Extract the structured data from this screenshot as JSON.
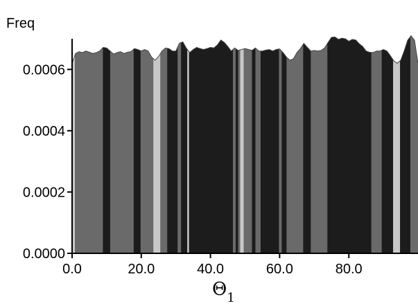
{
  "chart_data": {
    "type": "area",
    "ylabel": "Freq",
    "xlabel": "Θ",
    "xlabel_subscript": "1",
    "xlim": [
      0,
      100
    ],
    "ylim": [
      0,
      0.0007
    ],
    "xticks": [
      "0.0",
      "20.0",
      "40.0",
      "60.0",
      "80.0"
    ],
    "xtick_values": [
      0,
      20,
      40,
      60,
      80
    ],
    "yticks": [
      "0.0000",
      "0.0002",
      "0.0004",
      "0.0006"
    ],
    "ytick_values": [
      0,
      0.0002,
      0.0004,
      0.0006
    ],
    "grid": false,
    "band_colors": {
      "light": "#c8c8c8",
      "medium": "#6a6a6a",
      "dark": "#1c1c1c"
    },
    "bands": [
      {
        "x0": 0.0,
        "x1": 0.8,
        "shade": "light"
      },
      {
        "x0": 0.8,
        "x1": 8.9,
        "shade": "medium"
      },
      {
        "x0": 8.9,
        "x1": 11.0,
        "shade": "dark"
      },
      {
        "x0": 11.0,
        "x1": 17.8,
        "shade": "medium"
      },
      {
        "x0": 17.8,
        "x1": 19.8,
        "shade": "dark"
      },
      {
        "x0": 19.8,
        "x1": 23.5,
        "shade": "medium"
      },
      {
        "x0": 23.5,
        "x1": 25.5,
        "shade": "light"
      },
      {
        "x0": 25.5,
        "x1": 27.5,
        "shade": "medium"
      },
      {
        "x0": 27.5,
        "x1": 30.5,
        "shade": "dark"
      },
      {
        "x0": 30.5,
        "x1": 31.5,
        "shade": "medium"
      },
      {
        "x0": 31.5,
        "x1": 33.3,
        "shade": "dark"
      },
      {
        "x0": 33.3,
        "x1": 33.8,
        "shade": "light"
      },
      {
        "x0": 33.8,
        "x1": 46.5,
        "shade": "dark"
      },
      {
        "x0": 46.5,
        "x1": 47.3,
        "shade": "medium"
      },
      {
        "x0": 47.3,
        "x1": 48.0,
        "shade": "dark"
      },
      {
        "x0": 48.0,
        "x1": 48.6,
        "shade": "medium"
      },
      {
        "x0": 48.6,
        "x1": 49.6,
        "shade": "light"
      },
      {
        "x0": 49.6,
        "x1": 52.0,
        "shade": "medium"
      },
      {
        "x0": 52.0,
        "x1": 53.0,
        "shade": "dark"
      },
      {
        "x0": 53.0,
        "x1": 54.5,
        "shade": "medium"
      },
      {
        "x0": 54.5,
        "x1": 59.8,
        "shade": "dark"
      },
      {
        "x0": 59.8,
        "x1": 60.6,
        "shade": "medium"
      },
      {
        "x0": 60.6,
        "x1": 62.0,
        "shade": "dark"
      },
      {
        "x0": 62.0,
        "x1": 66.8,
        "shade": "medium"
      },
      {
        "x0": 66.8,
        "x1": 69.0,
        "shade": "dark"
      },
      {
        "x0": 69.0,
        "x1": 73.8,
        "shade": "medium"
      },
      {
        "x0": 73.8,
        "x1": 86.5,
        "shade": "dark"
      },
      {
        "x0": 86.5,
        "x1": 89.5,
        "shade": "medium"
      },
      {
        "x0": 89.5,
        "x1": 92.8,
        "shade": "dark"
      },
      {
        "x0": 92.8,
        "x1": 94.8,
        "shade": "light"
      },
      {
        "x0": 94.8,
        "x1": 97.8,
        "shade": "dark"
      },
      {
        "x0": 97.8,
        "x1": 100.0,
        "shade": "medium"
      }
    ],
    "x": [
      0,
      1,
      2,
      3,
      4,
      5,
      6,
      7,
      8,
      9,
      10,
      11,
      12,
      13,
      14,
      15,
      16,
      17,
      18,
      19,
      20,
      21,
      22,
      23,
      24,
      25,
      26,
      27,
      28,
      29,
      30,
      31,
      32,
      33,
      34,
      35,
      36,
      37,
      38,
      39,
      40,
      41,
      42,
      43,
      44,
      45,
      46,
      47,
      48,
      49,
      50,
      51,
      52,
      53,
      54,
      55,
      56,
      57,
      58,
      59,
      60,
      61,
      62,
      63,
      64,
      65,
      66,
      67,
      68,
      69,
      70,
      71,
      72,
      73,
      74,
      75,
      76,
      77,
      78,
      79,
      80,
      81,
      82,
      83,
      84,
      85,
      86,
      87,
      88,
      89,
      90,
      91,
      92,
      93,
      94,
      95,
      96,
      97,
      98,
      99,
      100
    ],
    "values": [
      0.00062,
      0.000652,
      0.000658,
      0.000655,
      0.00066,
      0.000656,
      0.000652,
      0.000655,
      0.00066,
      0.000672,
      0.00067,
      0.00066,
      0.00065,
      0.000655,
      0.000658,
      0.000652,
      0.000656,
      0.000658,
      0.000668,
      0.000665,
      0.00066,
      0.000665,
      0.00066,
      0.00064,
      0.00063,
      0.000642,
      0.00066,
      0.00067,
      0.000668,
      0.00066,
      0.00066,
      0.000685,
      0.00069,
      0.00067,
      0.000655,
      0.000665,
      0.000672,
      0.000668,
      0.000665,
      0.000668,
      0.000672,
      0.00067,
      0.00068,
      0.000696,
      0.000688,
      0.000675,
      0.00066,
      0.00067,
      0.000662,
      0.000665,
      0.000668,
      0.000665,
      0.000662,
      0.00067,
      0.00066,
      0.00066,
      0.000663,
      0.000665,
      0.00066,
      0.000665,
      0.000667,
      0.000655,
      0.00064,
      0.00063,
      0.000635,
      0.000655,
      0.000668,
      0.000685,
      0.000672,
      0.00066,
      0.000662,
      0.00066,
      0.000662,
      0.00067,
      0.000688,
      0.000705,
      0.000706,
      0.000698,
      0.000702,
      0.0007,
      0.000692,
      0.000698,
      0.000696,
      0.000684,
      0.000675,
      0.00066,
      0.000656,
      0.000655,
      0.00066,
      0.00066,
      0.000665,
      0.00066,
      0.000645,
      0.000628,
      0.00062,
      0.00063,
      0.00066,
      0.000695,
      0.00071,
      0.000695,
      0.00062
    ]
  }
}
